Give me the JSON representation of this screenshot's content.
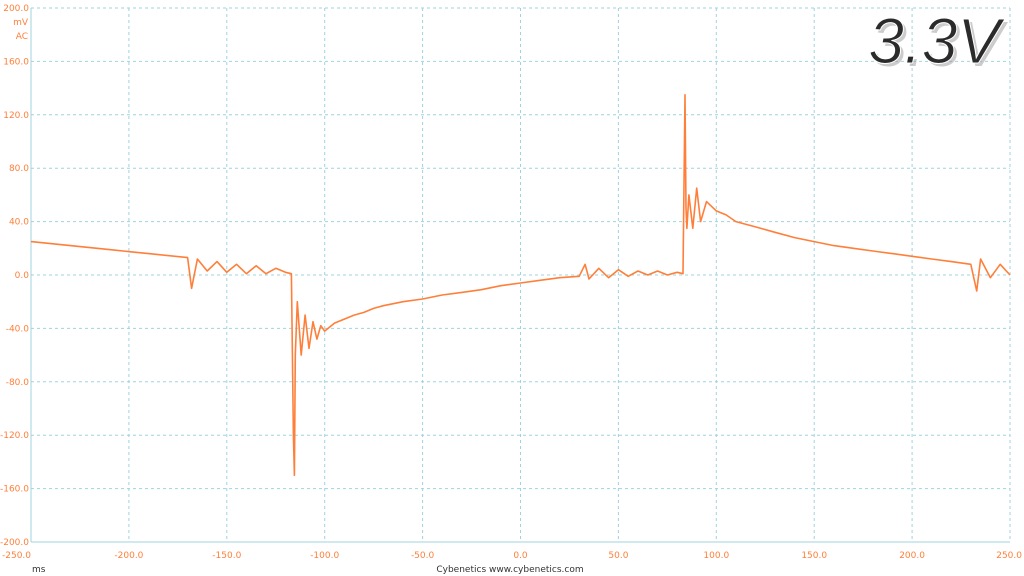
{
  "header": {
    "title": "3.3V",
    "unit_label": "mV",
    "coupling_label": "AC"
  },
  "footer": {
    "xunit_label": "ms",
    "credit": "Cybenetics   www.cybenetics.com"
  },
  "colors": {
    "trace": "#ff7f3a",
    "tick_text": "#ff7f3a",
    "grid": "#9fd3df",
    "title": "#2b2b2b"
  },
  "chart_data": {
    "type": "line",
    "title": "3.3V",
    "xlabel": "ms",
    "ylabel": "mV",
    "xlim": [
      -250,
      250
    ],
    "ylim": [
      -200,
      200
    ],
    "grid": true,
    "x_ticks": [
      -250,
      -200,
      -150,
      -100,
      -50,
      0,
      50,
      100,
      150,
      200,
      250
    ],
    "y_ticks": [
      200,
      160,
      120,
      80,
      40,
      0,
      -40,
      -80,
      -120,
      -160,
      -200
    ],
    "x_tick_labels": [
      "-250.0",
      "-200.0",
      "-150.0",
      "-100.0",
      "-50.0",
      "0.0",
      "50.0",
      "100.0",
      "150.0",
      "200.0",
      "250.0"
    ],
    "y_tick_labels": [
      "200.0",
      "160.0",
      "120.0",
      "80.0",
      "40.0",
      "0.0",
      "-40.0",
      "-80.0",
      "-120.0",
      "-160.0",
      "-200.0"
    ],
    "series": [
      {
        "x": [
          -250,
          -230,
          -210,
          -190,
          -170,
          -168,
          -165,
          -160,
          -155,
          -150,
          -145,
          -140,
          -135,
          -130,
          -125,
          -120,
          -117,
          -116,
          -115.5,
          -115,
          -114,
          -112,
          -110,
          -108,
          -106,
          -104,
          -102,
          -100,
          -95,
          -90,
          -85,
          -80,
          -75,
          -70,
          -60,
          -50,
          -40,
          -30,
          -20,
          -10,
          0,
          10,
          20,
          30,
          33,
          35,
          40,
          45,
          50,
          55,
          60,
          65,
          70,
          75,
          80,
          83,
          84,
          84.5,
          85,
          86,
          88,
          90,
          92,
          95,
          100,
          105,
          110,
          120,
          130,
          140,
          150,
          160,
          170,
          180,
          190,
          200,
          210,
          220,
          230,
          233,
          235,
          240,
          245,
          250
        ],
        "y": [
          25,
          22,
          19,
          16,
          13,
          -10,
          12,
          3,
          10,
          2,
          8,
          1,
          7,
          1,
          5,
          2,
          1,
          -120,
          -150,
          -60,
          -20,
          -60,
          -30,
          -55,
          -35,
          -48,
          -38,
          -42,
          -36,
          -33,
          -30,
          -28,
          -25,
          -23,
          -20,
          -18,
          -15,
          -13,
          -11,
          -8,
          -6,
          -4,
          -2,
          -1,
          8,
          -3,
          5,
          -2,
          4,
          -1,
          3,
          0,
          3,
          0,
          2,
          1,
          135,
          50,
          35,
          60,
          35,
          65,
          40,
          55,
          48,
          45,
          40,
          36,
          32,
          28,
          25,
          22,
          20,
          18,
          16,
          14,
          12,
          10,
          8,
          -12,
          12,
          -2,
          8,
          0
        ]
      }
    ]
  }
}
